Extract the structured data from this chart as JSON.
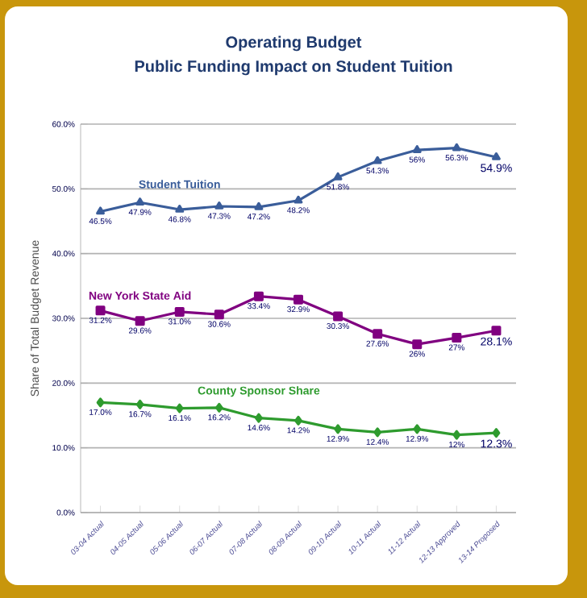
{
  "chart_data": {
    "type": "line",
    "title": "Operating Budget",
    "subtitle": "Public Funding Impact on Student Tuition",
    "ylabel": "Share of Total Budget Revenue",
    "categories": [
      "03-04 Actual",
      "04-05 Actual",
      "05-06 Actual",
      "06-07 Actual",
      "07-08 Actual",
      "08-09 Actual",
      "09-10 Actual",
      "10-11 Actual",
      "11-12 Actual",
      "12-13 Approved",
      "13-14 Proposed"
    ],
    "series": [
      {
        "name": "Student Tuition",
        "color": "#3a5d9a",
        "marker": "triangle",
        "values": [
          46.5,
          47.9,
          46.8,
          47.3,
          47.2,
          48.2,
          51.8,
          54.3,
          56,
          56.3,
          54.9
        ],
        "value_labels": [
          "46.5%",
          "47.9%",
          "46.8%",
          "47.3%",
          "47.2%",
          "48.2%",
          "51.8%",
          "54.3%",
          "56%",
          "56.3%",
          "54.9%"
        ]
      },
      {
        "name": "New York State Aid",
        "color": "#800080",
        "marker": "square",
        "values": [
          31.2,
          29.6,
          31.0,
          30.6,
          33.4,
          32.9,
          30.3,
          27.6,
          26,
          27,
          28.1
        ],
        "value_labels": [
          "31.2%",
          "29.6%",
          "31.0%",
          "30.6%",
          "33.4%",
          "32.9%",
          "30.3%",
          "27.6%",
          "26%",
          "27%",
          "28.1%"
        ]
      },
      {
        "name": "County Sponsor Share",
        "color": "#2e9b2e",
        "marker": "diamond",
        "values": [
          17.0,
          16.7,
          16.1,
          16.2,
          14.6,
          14.2,
          12.9,
          12.4,
          12.9,
          12,
          12.3
        ],
        "value_labels": [
          "17.0%",
          "16.7%",
          "16.1%",
          "16.2%",
          "14.6%",
          "14.2%",
          "12.9%",
          "12.4%",
          "12.9%",
          "12%",
          "12.3%"
        ]
      }
    ],
    "ylim": [
      0,
      60
    ],
    "yticks": [
      {
        "value": 0,
        "label": "0.0%"
      },
      {
        "value": 10,
        "label": "10.0%"
      },
      {
        "value": 20,
        "label": "20.0%"
      },
      {
        "value": 30,
        "label": "30.0%"
      },
      {
        "value": 40,
        "label": "40.0%"
      },
      {
        "value": 50,
        "label": "50.0%"
      },
      {
        "value": 60,
        "label": "60.0%"
      }
    ],
    "grid": "y",
    "legend": false,
    "line_style": "solid"
  }
}
